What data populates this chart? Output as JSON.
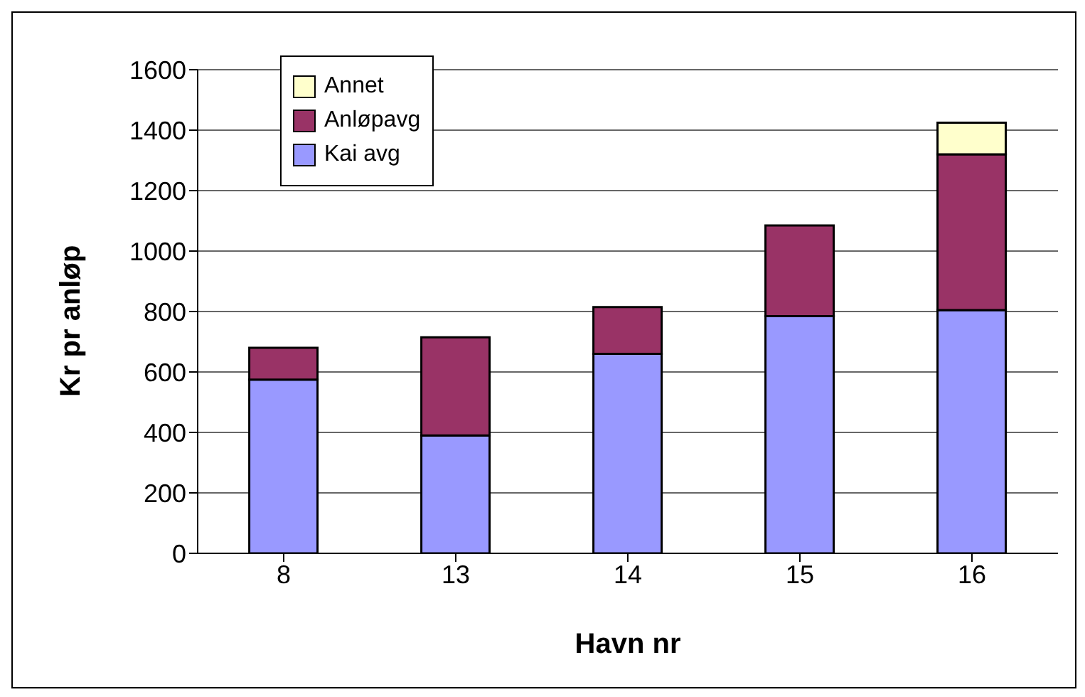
{
  "chart_data": {
    "type": "bar",
    "stacked": true,
    "xlabel": "Havn nr",
    "ylabel": "Kr pr anløp",
    "categories": [
      "8",
      "13",
      "14",
      "15",
      "16"
    ],
    "series": [
      {
        "name": "Kai avg",
        "color": "#9999ff",
        "values": [
          575,
          390,
          660,
          785,
          805
        ]
      },
      {
        "name": "Anløpavg",
        "color": "#993366",
        "values": [
          105,
          325,
          155,
          300,
          515
        ]
      },
      {
        "name": "Annet",
        "color": "#ffffcc",
        "values": [
          0,
          0,
          0,
          0,
          105
        ]
      }
    ],
    "ylim": [
      0,
      1600
    ],
    "yticks": [
      0,
      200,
      400,
      600,
      800,
      1000,
      1200,
      1400,
      1600
    ],
    "grid": "y",
    "legend": "top left"
  }
}
